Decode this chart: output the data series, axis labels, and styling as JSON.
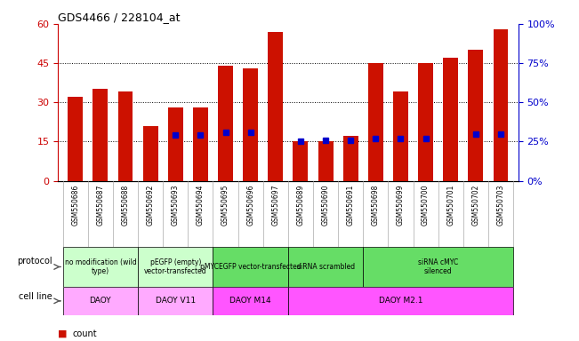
{
  "title": "GDS4466 / 228104_at",
  "samples": [
    "GSM550686",
    "GSM550687",
    "GSM550688",
    "GSM550692",
    "GSM550693",
    "GSM550694",
    "GSM550695",
    "GSM550696",
    "GSM550697",
    "GSM550689",
    "GSM550690",
    "GSM550691",
    "GSM550698",
    "GSM550699",
    "GSM550700",
    "GSM550701",
    "GSM550702",
    "GSM550703"
  ],
  "counts": [
    32,
    35,
    34,
    21,
    28,
    28,
    44,
    43,
    57,
    15,
    15,
    17,
    45,
    34,
    45,
    47,
    50,
    58
  ],
  "percentile": [
    null,
    null,
    null,
    null,
    29,
    29,
    31,
    31,
    null,
    25,
    26,
    26,
    27,
    27,
    27,
    null,
    30,
    30
  ],
  "ylim_left": [
    0,
    60
  ],
  "ylim_right": [
    0,
    100
  ],
  "yticks_left": [
    0,
    15,
    30,
    45,
    60
  ],
  "yticks_right": [
    0,
    25,
    50,
    75,
    100
  ],
  "bar_color": "#cc1100",
  "dot_color": "#0000cc",
  "protocol_groups": [
    {
      "label": "no modification (wild\ntype)",
      "xstart": 0,
      "xend": 3,
      "color": "#ccffcc"
    },
    {
      "label": "pEGFP (empty)\nvector-transfected",
      "xstart": 3,
      "xend": 6,
      "color": "#ccffcc"
    },
    {
      "label": "pMYCEGFP vector-transfected",
      "xstart": 6,
      "xend": 9,
      "color": "#66dd66"
    },
    {
      "label": "siRNA scrambled",
      "xstart": 9,
      "xend": 12,
      "color": "#66dd66"
    },
    {
      "label": "siRNA cMYC\nsilenced",
      "xstart": 12,
      "xend": 18,
      "color": "#66dd66"
    }
  ],
  "cellline_groups": [
    {
      "label": "DAOY",
      "xstart": 0,
      "xend": 3,
      "color": "#ffaaff"
    },
    {
      "label": "DAOY V11",
      "xstart": 3,
      "xend": 6,
      "color": "#ffaaff"
    },
    {
      "label": "DAOY M14",
      "xstart": 6,
      "xend": 9,
      "color": "#ff55ff"
    },
    {
      "label": "DAOY M2.1",
      "xstart": 9,
      "xend": 18,
      "color": "#ff55ff"
    }
  ],
  "bg_color": "#ffffff",
  "tick_label_color_left": "#cc0000",
  "tick_label_color_right": "#0000cc",
  "xtick_bg": "#dddddd"
}
